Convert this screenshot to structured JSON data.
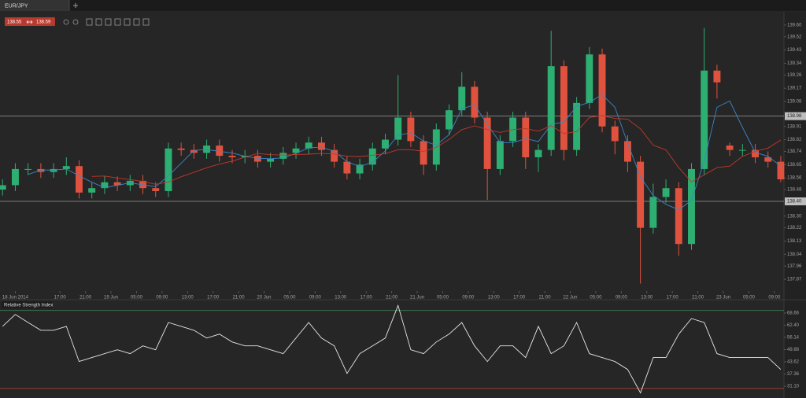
{
  "chart_data": {
    "type": "candlestick",
    "symbol": "EUR/JPY",
    "quote": {
      "bid": 138.55,
      "ask": 138.59
    },
    "up_color": "#2eaf72",
    "down_color": "#e0523e",
    "candles": [
      [
        138.48,
        138.55,
        138.44,
        138.51
      ],
      [
        138.51,
        138.66,
        138.47,
        138.62
      ],
      [
        138.62,
        138.66,
        138.58,
        138.62
      ],
      [
        138.62,
        138.66,
        138.56,
        138.6
      ],
      [
        138.6,
        138.66,
        138.56,
        138.62
      ],
      [
        138.62,
        138.7,
        138.58,
        138.64
      ],
      [
        138.64,
        138.68,
        138.42,
        138.46
      ],
      [
        138.46,
        138.53,
        138.42,
        138.49
      ],
      [
        138.49,
        138.57,
        138.45,
        138.53
      ],
      [
        138.53,
        138.57,
        138.47,
        138.51
      ],
      [
        138.51,
        138.58,
        138.47,
        138.54
      ],
      [
        138.54,
        138.58,
        138.45,
        138.49
      ],
      [
        138.49,
        138.53,
        138.43,
        138.47
      ],
      [
        138.47,
        138.8,
        138.43,
        138.76
      ],
      [
        138.76,
        138.8,
        138.71,
        138.75
      ],
      [
        138.75,
        138.79,
        138.69,
        138.73
      ],
      [
        138.73,
        138.82,
        138.69,
        138.78
      ],
      [
        138.78,
        138.82,
        138.67,
        138.71
      ],
      [
        138.71,
        138.75,
        138.66,
        138.7
      ],
      [
        138.7,
        138.75,
        138.66,
        138.71
      ],
      [
        138.71,
        138.75,
        138.63,
        138.67
      ],
      [
        138.67,
        138.73,
        138.63,
        138.69
      ],
      [
        138.69,
        138.77,
        138.65,
        138.73
      ],
      [
        138.73,
        138.8,
        138.69,
        138.76
      ],
      [
        138.76,
        138.84,
        138.72,
        138.8
      ],
      [
        138.8,
        138.84,
        138.71,
        138.75
      ],
      [
        138.75,
        138.79,
        138.63,
        138.67
      ],
      [
        138.67,
        138.71,
        138.55,
        138.59
      ],
      [
        138.59,
        138.69,
        138.55,
        138.65
      ],
      [
        138.65,
        138.8,
        138.61,
        138.76
      ],
      [
        138.76,
        138.86,
        138.72,
        138.82
      ],
      [
        138.82,
        139.26,
        138.78,
        138.97
      ],
      [
        138.97,
        139.01,
        138.77,
        138.81
      ],
      [
        138.81,
        138.85,
        138.58,
        138.65
      ],
      [
        138.65,
        138.93,
        138.61,
        138.89
      ],
      [
        138.89,
        139.06,
        138.85,
        139.02
      ],
      [
        139.02,
        139.28,
        138.98,
        139.18
      ],
      [
        139.18,
        139.22,
        138.93,
        138.97
      ],
      [
        138.97,
        139.01,
        138.41,
        138.62
      ],
      [
        138.62,
        138.85,
        138.58,
        138.81
      ],
      [
        138.81,
        139.01,
        138.77,
        138.97
      ],
      [
        138.97,
        139.01,
        138.62,
        138.7
      ],
      [
        138.7,
        138.79,
        138.6,
        138.75
      ],
      [
        138.75,
        139.56,
        138.71,
        139.32
      ],
      [
        139.32,
        139.36,
        138.68,
        138.75
      ],
      [
        138.75,
        139.11,
        138.71,
        139.07
      ],
      [
        139.07,
        139.45,
        139.03,
        139.4
      ],
      [
        139.4,
        139.44,
        138.87,
        138.91
      ],
      [
        138.91,
        138.95,
        138.72,
        138.81
      ],
      [
        138.81,
        138.85,
        138.6,
        138.67
      ],
      [
        138.67,
        138.71,
        137.84,
        138.22
      ],
      [
        138.22,
        138.52,
        138.18,
        138.43
      ],
      [
        138.43,
        138.55,
        138.39,
        138.49
      ],
      [
        138.49,
        138.53,
        138.03,
        138.11
      ],
      [
        138.11,
        138.66,
        138.07,
        138.62
      ],
      [
        138.62,
        139.58,
        138.58,
        139.29
      ],
      [
        139.29,
        139.33,
        139.1,
        139.21
      ],
      [
        138.78,
        138.8,
        138.71,
        138.75
      ],
      [
        138.75,
        138.79,
        138.71,
        138.75
      ],
      [
        138.75,
        138.79,
        138.66,
        138.7
      ],
      [
        138.7,
        138.74,
        138.63,
        138.67
      ],
      [
        138.67,
        138.71,
        138.53,
        138.55
      ]
    ],
    "xlim": [
      -0.2,
      61.25
    ],
    "xticks": [
      {
        "value": 1,
        "label": "18 Jun 2014"
      },
      {
        "value": 4.5,
        "label": "17:00"
      },
      {
        "value": 6.5,
        "label": "21:00"
      },
      {
        "value": 8.5,
        "label": "19 Jun"
      },
      {
        "value": 10.5,
        "label": "05:00"
      },
      {
        "value": 12.5,
        "label": "09:00"
      },
      {
        "value": 14.5,
        "label": "13:00"
      },
      {
        "value": 16.5,
        "label": "17:00"
      },
      {
        "value": 18.5,
        "label": "21:00"
      },
      {
        "value": 20.5,
        "label": "20 Jun"
      },
      {
        "value": 22.5,
        "label": "05:00"
      },
      {
        "value": 24.5,
        "label": "09:00"
      },
      {
        "value": 26.5,
        "label": "13:00"
      },
      {
        "value": 28.5,
        "label": "17:00"
      },
      {
        "value": 30.5,
        "label": "21:00"
      },
      {
        "value": 32.5,
        "label": "21 Jun"
      },
      {
        "value": 34.5,
        "label": "05:00"
      },
      {
        "value": 36.5,
        "label": "09:00"
      },
      {
        "value": 38.5,
        "label": "13:00"
      },
      {
        "value": 40.5,
        "label": "17:00"
      },
      {
        "value": 42.5,
        "label": "21:00"
      },
      {
        "value": 44.5,
        "label": "22 Jun"
      },
      {
        "value": 46.5,
        "label": "05:00"
      },
      {
        "value": 48.5,
        "label": "09:00"
      },
      {
        "value": 50.5,
        "label": "13:00"
      },
      {
        "value": 52.5,
        "label": "17:00"
      },
      {
        "value": 54.5,
        "label": "21:00"
      },
      {
        "value": 56.5,
        "label": "23 Jun"
      },
      {
        "value": 58.5,
        "label": "05:00"
      },
      {
        "value": 60.5,
        "label": "09:00"
      }
    ],
    "ylim": [
      137.79,
      139.69
    ],
    "yticks": [
      {
        "value": 139.6,
        "label": "139.60"
      },
      139.52,
      139.43,
      139.34,
      139.26,
      139.17,
      139.08,
      138.91,
      138.82,
      138.74,
      138.65,
      138.56,
      138.48,
      {
        "value": 138.3,
        "label": "138.30"
      },
      138.22,
      138.13,
      138.04,
      137.96,
      137.87
    ],
    "horizontal_lines": [
      138.98,
      {
        "value": 138.4,
        "label": "138.40"
      }
    ],
    "moving_averages": [
      {
        "period": 3,
        "color": "#3b86c6"
      },
      {
        "period": 8,
        "color": "#c0392b"
      }
    ],
    "indicator": {
      "title": "Relative Strength Index",
      "color": "#e6e6e6",
      "values": [
        61.8,
        67.9,
        63.8,
        59.8,
        59.8,
        61.8,
        43.8,
        45.8,
        47.8,
        49.8,
        47.8,
        51.8,
        49.8,
        63.8,
        61.8,
        59.8,
        55.8,
        57.8,
        53.8,
        51.8,
        51.8,
        49.8,
        47.8,
        55.8,
        63.8,
        55.8,
        51.8,
        37.7,
        47.8,
        51.8,
        55.8,
        72.5,
        49.8,
        47.8,
        53.8,
        57.8,
        63.8,
        51.8,
        43.8,
        51.8,
        51.8,
        45.8,
        61.8,
        47.8,
        51.8,
        63.8,
        47.8,
        45.8,
        43.8,
        39.7,
        27.7,
        45.8,
        45.8,
        57.8,
        65.8,
        63.8,
        47.8,
        45.8,
        45.8,
        45.8,
        45.8,
        39.7
      ],
      "ylim": [
        26.68,
        75.08
      ],
      "yticks": [
        68.66,
        {
          "value": 62.4,
          "label": "62.40"
        },
        56.14,
        49.88,
        43.62,
        37.36,
        {
          "value": 31.1,
          "label": "31.10"
        }
      ],
      "levels": [
        {
          "value": 70,
          "color": "#3f6f4f"
        },
        {
          "value": 30,
          "color": "#9c3a30"
        }
      ]
    }
  }
}
